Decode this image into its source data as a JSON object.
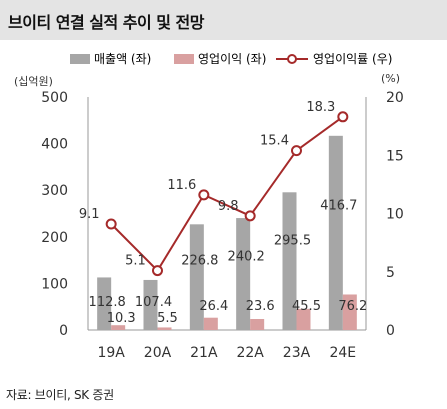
{
  "page": {
    "title": "브이티 연결 실적 추이 및 전망",
    "source": "자료: 브이티, SK 증권"
  },
  "chart_data": {
    "type": "bar",
    "categories": [
      "19A",
      "20A",
      "21A",
      "22A",
      "23A",
      "24E"
    ],
    "series": [
      {
        "name": "매출액 (좌)",
        "kind": "bar",
        "axis": "left",
        "color": "#a6a6a6",
        "values": [
          112.8,
          107.4,
          226.8,
          240.2,
          295.5,
          416.7
        ]
      },
      {
        "name": "영업이익 (좌)",
        "kind": "bar",
        "axis": "left",
        "color": "#d9a0a0",
        "values": [
          10.3,
          5.5,
          26.4,
          23.6,
          45.5,
          76.2
        ]
      },
      {
        "name": "영업이익률 (우)",
        "kind": "line",
        "axis": "right",
        "color": "#a52a2a",
        "values": [
          9.1,
          5.1,
          11.6,
          9.8,
          15.4,
          18.3
        ]
      }
    ],
    "y_left": {
      "unit": "(십억원)",
      "lim": [
        0,
        500
      ],
      "ticks": [
        0,
        100,
        200,
        300,
        400,
        500
      ]
    },
    "y_right": {
      "unit": "(%)",
      "lim": [
        0,
        20
      ],
      "ticks": [
        0,
        5,
        10,
        15,
        20
      ]
    },
    "legend_position": "top",
    "grid": false
  }
}
